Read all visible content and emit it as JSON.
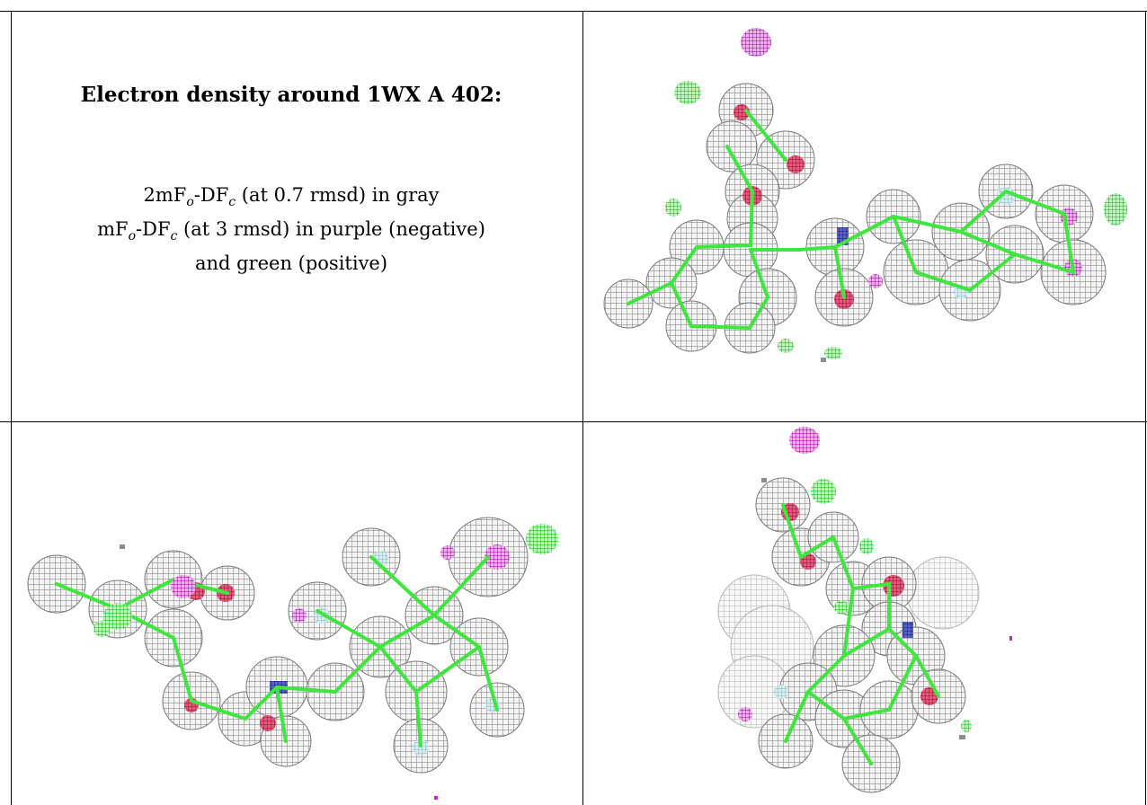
{
  "caption": {
    "title": "Electron density around 1WX A 402:",
    "line1": {
      "prefix": "2mF",
      "sub1": "o",
      "mid": "-DF",
      "sub2": "c",
      "rest": " (at 0.7 rmsd) in gray"
    },
    "line2": {
      "prefix": "mF",
      "sub1": "o",
      "mid": "-DF",
      "sub2": "c",
      "rest": " (at 3 rmsd) in purple (negative)"
    },
    "line3": "and green (positive)"
  },
  "colors": {
    "mesh_gray": "#9a9a9a",
    "positive_green": "#19e619",
    "negative_purple": "#d21ed2",
    "oxygen_red": "#c8144b",
    "nitrogen_blue": "#1e2896",
    "bond_green": "#46e646",
    "light_blue": "#a8d8e0"
  },
  "views": [
    {
      "name": "view-top-right"
    },
    {
      "name": "view-bottom-left"
    },
    {
      "name": "view-bottom-right"
    }
  ]
}
